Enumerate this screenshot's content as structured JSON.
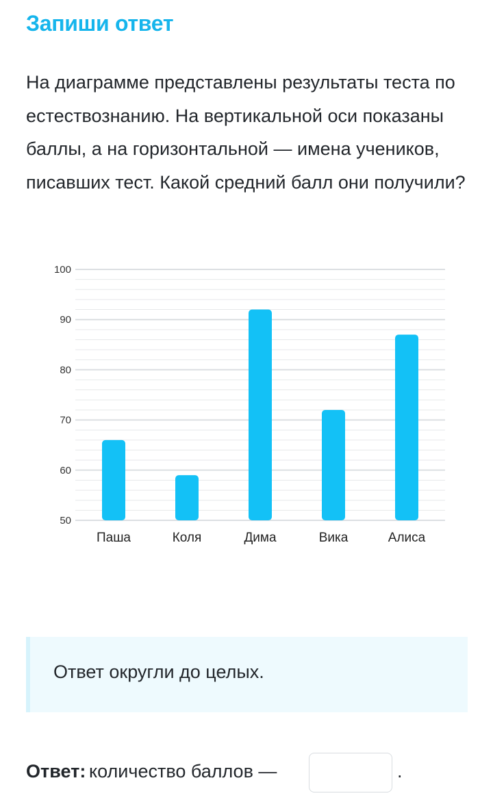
{
  "header": {
    "title": "Запиши ответ"
  },
  "question": {
    "text": "На диаграмме представлены результаты теста по естествознанию. На вертикальной оси показаны баллы, а на горизонтальной — имена учеников, писавших тест. Какой средний балл они получили?"
  },
  "chart_data": {
    "type": "bar",
    "categories": [
      "Паша",
      "Коля",
      "Дима",
      "Вика",
      "Алиса"
    ],
    "values": [
      66,
      59,
      92,
      72,
      87
    ],
    "ylim": [
      50,
      100
    ],
    "yticks": [
      "100",
      "90",
      "80",
      "70",
      "60",
      "50"
    ],
    "minor_grid_step": 2,
    "grid": true,
    "bar_color": "#13c1f6",
    "grid_color": "#e6e8ea",
    "xlabel": "",
    "ylabel": ""
  },
  "hint": {
    "text": "Ответ округли до целых."
  },
  "answer": {
    "label": "Ответ:",
    "text": "количество баллов —",
    "value": "",
    "suffix": "."
  }
}
